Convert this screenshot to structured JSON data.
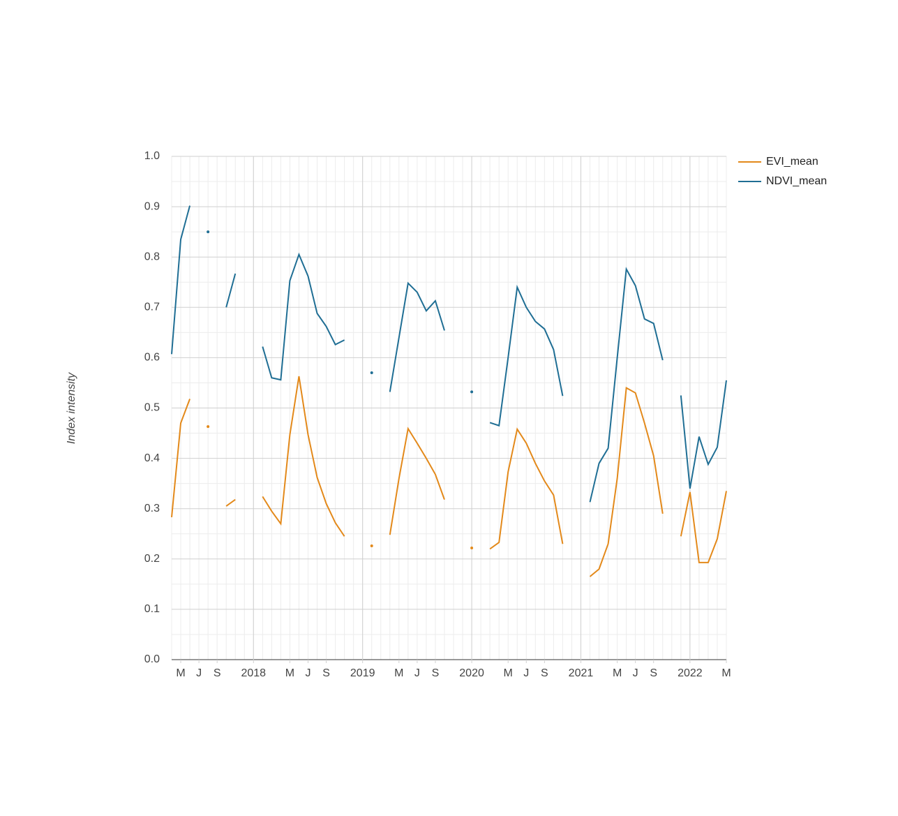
{
  "chart_data": {
    "type": "line",
    "y_label": "Index intensity",
    "x": [
      "2017-04",
      "2017-05",
      "2017-06",
      "2017-07",
      "2017-08",
      "2017-09",
      "2017-10",
      "2017-11",
      "2017-12",
      "2018-01",
      "2018-02",
      "2018-03",
      "2018-04",
      "2018-05",
      "2018-06",
      "2018-07",
      "2018-08",
      "2018-09",
      "2018-10",
      "2018-11",
      "2018-12",
      "2019-01",
      "2019-02",
      "2019-03",
      "2019-04",
      "2019-05",
      "2019-06",
      "2019-07",
      "2019-08",
      "2019-09",
      "2019-10",
      "2019-11",
      "2019-12",
      "2020-01",
      "2020-02",
      "2020-03",
      "2020-04",
      "2020-05",
      "2020-06",
      "2020-07",
      "2020-08",
      "2020-09",
      "2020-10",
      "2020-11",
      "2020-12",
      "2021-01",
      "2021-02",
      "2021-03",
      "2021-04",
      "2021-05",
      "2021-06",
      "2021-07",
      "2021-08",
      "2021-09",
      "2021-10",
      "2021-11",
      "2021-12",
      "2022-01",
      "2022-02",
      "2022-03",
      "2022-04",
      "2022-05"
    ],
    "series": [
      {
        "name": "EVI_mean",
        "color": "#e3891a",
        "values": [
          0.283,
          0.47,
          0.518,
          null,
          0.463,
          null,
          0.305,
          0.318,
          null,
          null,
          0.324,
          0.295,
          0.27,
          0.447,
          0.563,
          0.447,
          0.362,
          0.31,
          0.272,
          0.245,
          null,
          null,
          0.226,
          null,
          0.248,
          0.36,
          0.459,
          0.43,
          0.4,
          0.368,
          0.318,
          null,
          null,
          0.222,
          null,
          0.22,
          0.233,
          0.373,
          0.458,
          0.43,
          0.39,
          0.355,
          0.327,
          0.23,
          null,
          null,
          0.165,
          0.18,
          0.23,
          0.36,
          0.54,
          0.53,
          0.47,
          0.405,
          0.29,
          null,
          0.245,
          0.333,
          0.193,
          0.193,
          0.24,
          0.335
        ]
      },
      {
        "name": "NDVI_mean",
        "color": "#1f6e94",
        "values": [
          0.607,
          0.835,
          0.902,
          null,
          0.85,
          null,
          0.7,
          0.767,
          null,
          null,
          0.622,
          0.56,
          0.556,
          0.753,
          0.805,
          0.762,
          0.688,
          0.662,
          0.626,
          0.635,
          null,
          null,
          0.57,
          null,
          0.532,
          0.64,
          0.748,
          0.73,
          0.693,
          0.713,
          0.654,
          null,
          null,
          0.532,
          null,
          0.471,
          0.465,
          0.6,
          0.74,
          0.7,
          0.672,
          0.657,
          0.616,
          0.524,
          null,
          null,
          0.313,
          0.39,
          0.42,
          0.6,
          0.776,
          0.743,
          0.677,
          0.668,
          0.595,
          null,
          0.525,
          0.34,
          0.443,
          0.388,
          0.422,
          0.555
        ]
      }
    ],
    "ylim": [
      0,
      1
    ],
    "yticks": [
      {
        "value": 0,
        "label": "0.0"
      },
      {
        "value": 0.1,
        "label": "0.1"
      },
      {
        "value": 0.2,
        "label": "0.2"
      },
      {
        "value": 0.3,
        "label": "0.3"
      },
      {
        "value": 0.4,
        "label": "0.4"
      },
      {
        "value": 0.5,
        "label": "0.5"
      },
      {
        "value": 0.6,
        "label": "0.6"
      },
      {
        "value": 0.7,
        "label": "0.7"
      },
      {
        "value": 0.8,
        "label": "0.8"
      },
      {
        "value": 0.9,
        "label": "0.9"
      },
      {
        "value": 1,
        "label": "1.0"
      }
    ],
    "xticks": [
      {
        "value": "2017-05",
        "label": "M"
      },
      {
        "value": "2017-07",
        "label": "J"
      },
      {
        "value": "2017-09",
        "label": "S"
      },
      {
        "value": "2018-01",
        "label": "2018"
      },
      {
        "value": "2018-05",
        "label": "M"
      },
      {
        "value": "2018-07",
        "label": "J"
      },
      {
        "value": "2018-09",
        "label": "S"
      },
      {
        "value": "2019-01",
        "label": "2019"
      },
      {
        "value": "2019-05",
        "label": "M"
      },
      {
        "value": "2019-07",
        "label": "J"
      },
      {
        "value": "2019-09",
        "label": "S"
      },
      {
        "value": "2020-01",
        "label": "2020"
      },
      {
        "value": "2020-05",
        "label": "M"
      },
      {
        "value": "2020-07",
        "label": "J"
      },
      {
        "value": "2020-09",
        "label": "S"
      },
      {
        "value": "2021-01",
        "label": "2021"
      },
      {
        "value": "2021-05",
        "label": "M"
      },
      {
        "value": "2021-07",
        "label": "J"
      },
      {
        "value": "2021-09",
        "label": "S"
      },
      {
        "value": "2022-01",
        "label": "2022"
      },
      {
        "value": "2022-05",
        "label": "M"
      }
    ],
    "grid": true,
    "legend": "right"
  }
}
